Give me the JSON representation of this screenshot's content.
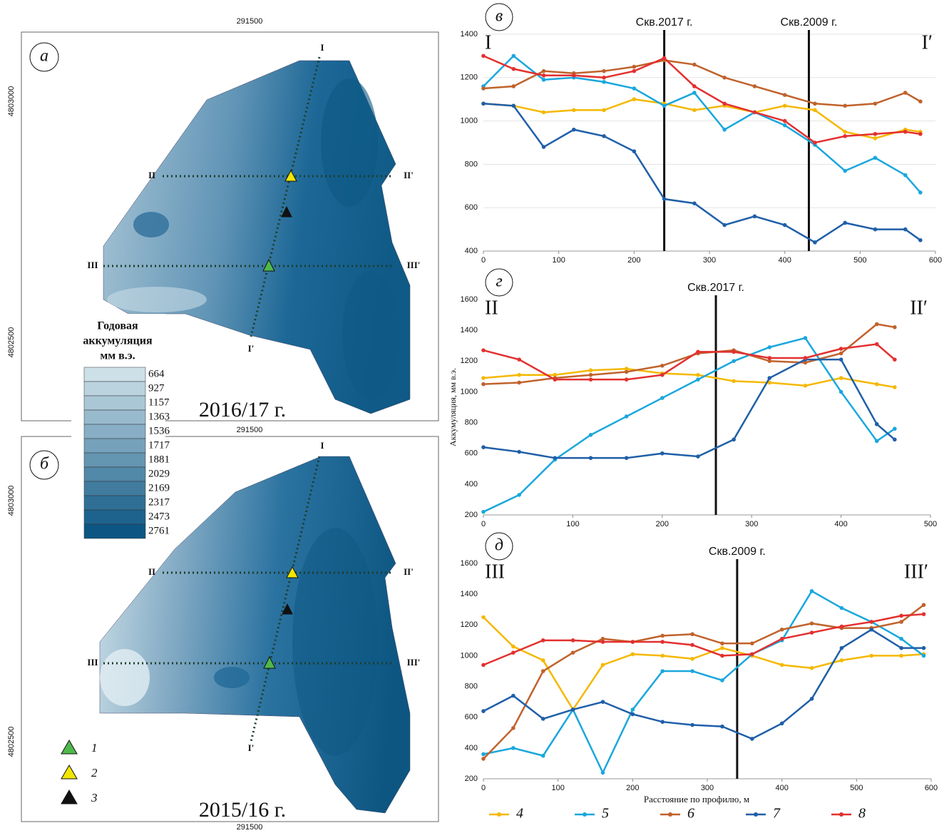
{
  "maps": {
    "panels": [
      {
        "letter": "а",
        "year": "2016/17 г."
      },
      {
        "letter": "б",
        "year": "2015/16 г."
      }
    ],
    "easting": "291500",
    "northing": [
      "4803000",
      "4802500"
    ],
    "profiles": [
      "I",
      "I'",
      "II",
      "II'",
      "III",
      "III'"
    ],
    "legend_title": [
      "Годовая",
      "аккумуляция",
      "мм в.э."
    ],
    "legend_values": [
      664,
      927,
      1157,
      1363,
      1536,
      1717,
      1881,
      2029,
      2169,
      2317,
      2473,
      2761
    ],
    "symbols": [
      "1",
      "2",
      "3"
    ]
  },
  "chart_data": [
    {
      "type": "line",
      "panel": "в",
      "left_label": "I",
      "right_label": "I′",
      "wells": [
        {
          "label": "Скв.2017 г.",
          "x": 240
        },
        {
          "label": "Скв.2009 г.",
          "x": 432
        }
      ],
      "x": [
        0,
        40,
        80,
        120,
        160,
        200,
        240,
        280,
        320,
        360,
        400,
        440,
        480,
        520,
        560,
        580
      ],
      "series": [
        {
          "color": "#f5b800",
          "values": [
            1080,
            1070,
            1040,
            1050,
            1050,
            1100,
            1080,
            1050,
            1070,
            1040,
            1070,
            1050,
            950,
            920,
            960,
            950
          ]
        },
        {
          "color": "#1aa7dd",
          "values": [
            1160,
            1300,
            1190,
            1200,
            1180,
            1150,
            1070,
            1130,
            960,
            1040,
            980,
            890,
            770,
            830,
            750,
            670
          ]
        },
        {
          "color": "#c0622c",
          "values": [
            1150,
            1160,
            1230,
            1220,
            1230,
            1250,
            1280,
            1260,
            1200,
            1160,
            1120,
            1080,
            1070,
            1080,
            1130,
            1090
          ]
        },
        {
          "color": "#1f5fa8",
          "values": [
            1080,
            1070,
            880,
            960,
            930,
            860,
            640,
            620,
            520,
            560,
            520,
            440,
            530,
            500,
            500,
            450
          ]
        },
        {
          "color": "#e3302f",
          "values": [
            1300,
            1240,
            1210,
            1210,
            1200,
            1230,
            1290,
            1160,
            1080,
            1040,
            1000,
            900,
            930,
            940,
            950,
            940
          ]
        }
      ],
      "xlim": [
        0,
        600
      ],
      "xticks": [
        0,
        100,
        200,
        300,
        400,
        500,
        600
      ],
      "ylim": [
        400,
        1400
      ],
      "yticks": [
        400,
        600,
        800,
        1000,
        1200,
        1400
      ],
      "grid": true
    },
    {
      "type": "line",
      "panel": "г",
      "left_label": "II",
      "right_label": "II′",
      "ylabel": "Аккумуляция, мм в.э.",
      "wells": [
        {
          "label": "Скв.2017 г.",
          "x": 260
        }
      ],
      "x": [
        0,
        40,
        80,
        120,
        160,
        200,
        240,
        280,
        320,
        360,
        400,
        440,
        460
      ],
      "series": [
        {
          "color": "#f5b800",
          "values": [
            1090,
            1110,
            1110,
            1140,
            1150,
            1120,
            1110,
            1070,
            1060,
            1040,
            1090,
            1050,
            1030
          ]
        },
        {
          "color": "#1aa7dd",
          "values": [
            220,
            330,
            560,
            720,
            840,
            960,
            1080,
            1200,
            1290,
            1350,
            1000,
            680,
            760
          ]
        },
        {
          "color": "#c0622c",
          "values": [
            1050,
            1060,
            1090,
            1110,
            1130,
            1170,
            1250,
            1270,
            1200,
            1190,
            1250,
            1440,
            1420
          ]
        },
        {
          "color": "#1f5fa8",
          "values": [
            640,
            610,
            570,
            570,
            570,
            600,
            580,
            690,
            1090,
            1210,
            1210,
            790,
            690
          ]
        },
        {
          "color": "#e3302f",
          "values": [
            1270,
            1210,
            1080,
            1080,
            1080,
            1110,
            1260,
            1260,
            1220,
            1220,
            1280,
            1310,
            1210
          ]
        }
      ],
      "xlim": [
        0,
        500
      ],
      "xticks": [
        0,
        100,
        200,
        300,
        400,
        500
      ],
      "ylim": [
        200,
        1600
      ],
      "yticks": [
        200,
        400,
        600,
        800,
        1000,
        1200,
        1400,
        1600
      ],
      "grid": false
    },
    {
      "type": "line",
      "panel": "д",
      "left_label": "III",
      "right_label": "III′",
      "xlabel": "Расстояние по профилю, м",
      "wells": [
        {
          "label": "Скв.2009 г.",
          "x": 340
        }
      ],
      "x": [
        0,
        40,
        80,
        120,
        160,
        200,
        240,
        280,
        320,
        360,
        400,
        440,
        480,
        520,
        560,
        590
      ],
      "series": [
        {
          "name": "4",
          "color": "#f5b800",
          "values": [
            1250,
            1060,
            970,
            650,
            940,
            1010,
            1000,
            980,
            1050,
            1000,
            940,
            920,
            970,
            1000,
            1000,
            1010
          ]
        },
        {
          "name": "5",
          "color": "#1aa7dd",
          "values": [
            360,
            400,
            350,
            650,
            240,
            650,
            900,
            900,
            840,
            1010,
            1100,
            1420,
            1310,
            1220,
            1110,
            1000
          ]
        },
        {
          "name": "6",
          "color": "#c0622c",
          "values": [
            330,
            530,
            900,
            1020,
            1110,
            1090,
            1130,
            1140,
            1080,
            1080,
            1170,
            1210,
            1180,
            1180,
            1220,
            1330
          ]
        },
        {
          "name": "7",
          "color": "#1f5fa8",
          "values": [
            640,
            740,
            590,
            650,
            700,
            620,
            570,
            550,
            540,
            460,
            560,
            720,
            1050,
            1170,
            1050,
            1050
          ]
        },
        {
          "name": "8",
          "color": "#e3302f",
          "values": [
            940,
            1020,
            1100,
            1100,
            1090,
            1090,
            1090,
            1070,
            1000,
            1010,
            1110,
            1150,
            1190,
            1220,
            1260,
            1270
          ]
        }
      ],
      "xlim": [
        0,
        600
      ],
      "xticks": [
        0,
        100,
        200,
        300,
        400,
        500,
        600
      ],
      "ylim": [
        200,
        1600
      ],
      "yticks": [
        200,
        400,
        600,
        800,
        1000,
        1200,
        1400,
        1600
      ],
      "grid": false
    }
  ]
}
